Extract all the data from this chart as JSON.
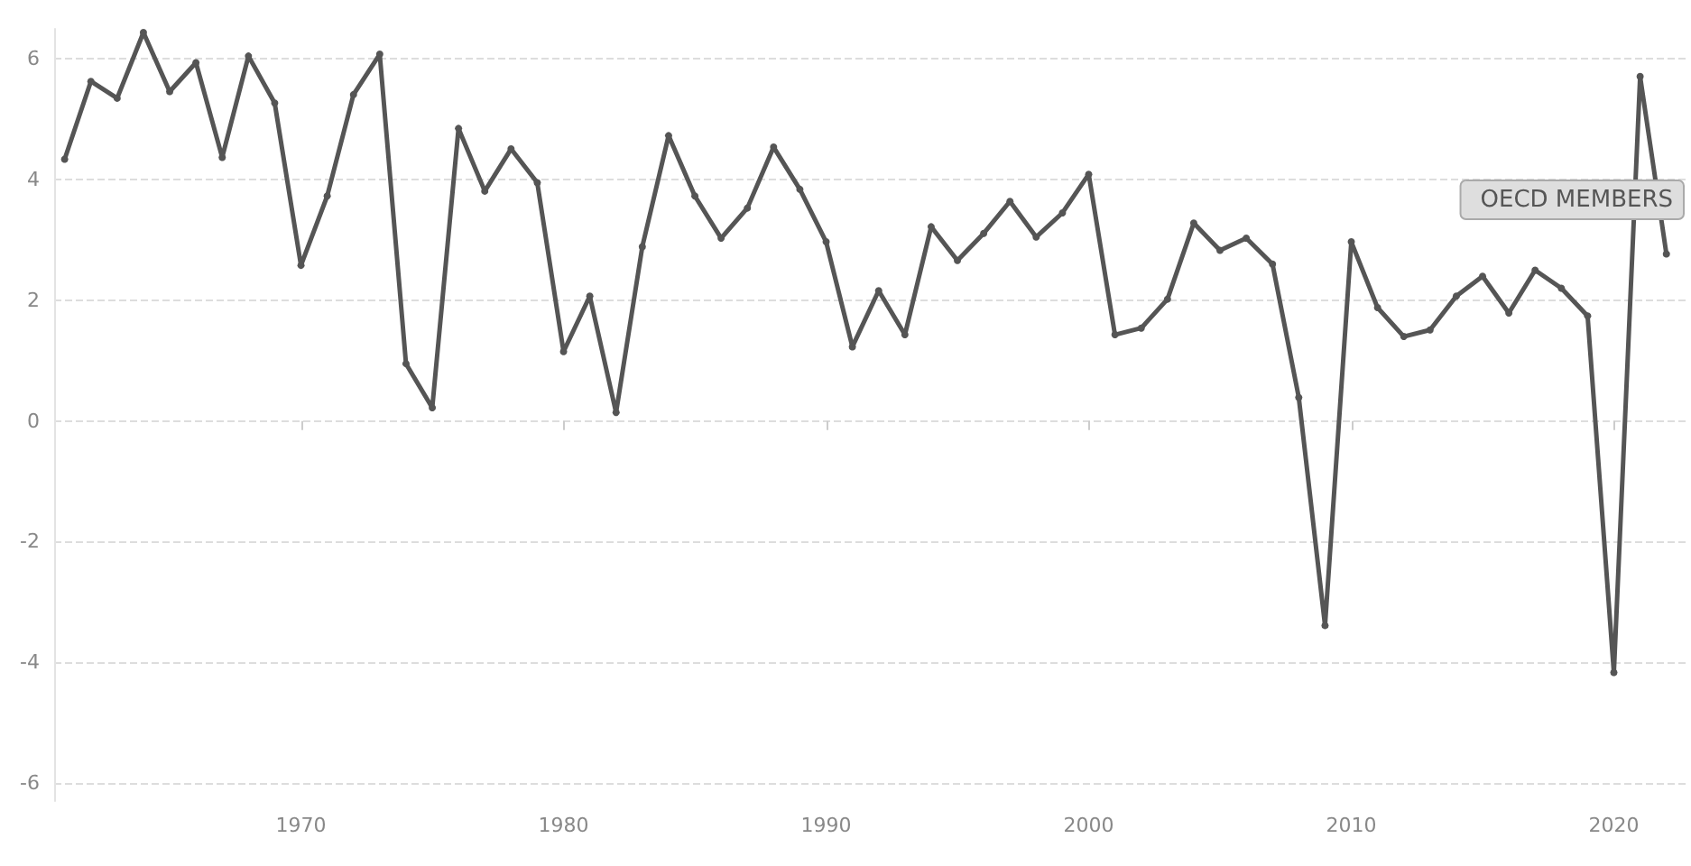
{
  "chart_data": {
    "type": "line",
    "x": [
      1961,
      1962,
      1963,
      1964,
      1965,
      1966,
      1967,
      1968,
      1969,
      1970,
      1971,
      1972,
      1973,
      1974,
      1975,
      1976,
      1977,
      1978,
      1979,
      1980,
      1981,
      1982,
      1983,
      1984,
      1985,
      1986,
      1987,
      1988,
      1989,
      1990,
      1991,
      1992,
      1993,
      1994,
      1995,
      1996,
      1997,
      1998,
      1999,
      2000,
      2001,
      2002,
      2003,
      2004,
      2005,
      2006,
      2007,
      2008,
      2009,
      2010,
      2011,
      2012,
      2013,
      2014,
      2015,
      2016,
      2017,
      2018,
      2019,
      2020,
      2021,
      2022
    ],
    "series": [
      {
        "name": "OECD MEMBERS",
        "color": "#555555",
        "values": [
          4.34,
          5.63,
          5.35,
          6.44,
          5.46,
          5.94,
          4.37,
          6.05,
          5.27,
          2.58,
          3.73,
          5.41,
          6.08,
          0.95,
          0.22,
          4.85,
          3.81,
          4.51,
          3.95,
          1.15,
          2.07,
          0.14,
          2.89,
          4.73,
          3.73,
          3.03,
          3.53,
          4.54,
          3.84,
          2.97,
          1.23,
          2.16,
          1.43,
          3.22,
          2.66,
          3.11,
          3.64,
          3.05,
          3.45,
          4.09,
          1.43,
          1.54,
          2.02,
          3.28,
          2.83,
          3.03,
          2.6,
          0.39,
          -3.39,
          2.97,
          1.88,
          1.4,
          1.51,
          2.07,
          2.4,
          1.79,
          2.5,
          2.2,
          1.74,
          -4.17,
          5.71,
          2.77
        ]
      }
    ],
    "xlim": [
      1960.6,
      2022.8
    ],
    "xticks": [
      1970,
      1980,
      1990,
      2000,
      2010,
      2020
    ],
    "ylim": [
      -6.3,
      6.5
    ],
    "yticks": [
      -6,
      -4,
      -2,
      0,
      2,
      4,
      6
    ],
    "grid": "y",
    "legend": "right",
    "marker": "circle",
    "line_style": "solid"
  }
}
